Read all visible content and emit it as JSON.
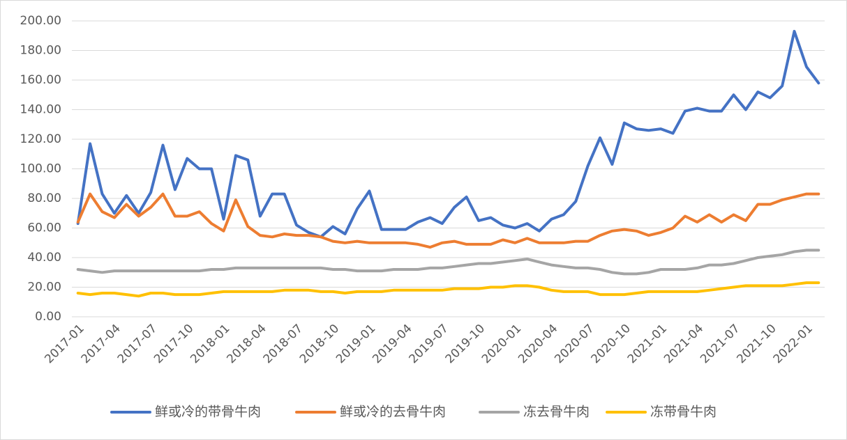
{
  "chart_data": {
    "type": "line",
    "categories": [
      "2017-01",
      null,
      null,
      "2017-04",
      null,
      null,
      "2017-07",
      null,
      null,
      "2017-10",
      null,
      null,
      "2018-01",
      null,
      null,
      "2018-04",
      null,
      null,
      "2018-07",
      null,
      null,
      "2018-10",
      null,
      null,
      "2019-01",
      null,
      null,
      "2019-04",
      null,
      null,
      "2019-07",
      null,
      null,
      "2019-10",
      null,
      null,
      "2020-01",
      null,
      null,
      "2020-04",
      null,
      null,
      "2020-07",
      null,
      null,
      "2020-10",
      null,
      null,
      "2021-01",
      null,
      null,
      "2021-04",
      null,
      null,
      "2021-07",
      null,
      null,
      "2021-10",
      null,
      null,
      "2022-01",
      null
    ],
    "series": [
      {
        "name": "鲜或冷的带骨牛肉",
        "color": "#4472c4",
        "values": [
          63,
          117,
          83,
          70,
          82,
          70,
          84,
          116,
          86,
          107,
          100,
          100,
          66,
          109,
          106,
          68,
          83,
          83,
          62,
          57,
          54,
          61,
          56,
          73,
          85,
          59,
          59,
          59,
          64,
          67,
          63,
          74,
          81,
          65,
          67,
          62,
          60,
          63,
          58,
          66,
          69,
          78,
          102,
          121,
          103,
          131,
          127,
          126,
          127,
          124,
          139,
          141,
          139,
          139,
          150,
          140,
          152,
          148,
          156,
          193,
          169,
          158
        ]
      },
      {
        "name": "鲜或冷的去骨牛肉",
        "color": "#ed7d31",
        "values": [
          64,
          83,
          71,
          67,
          76,
          68,
          74,
          83,
          68,
          68,
          71,
          63,
          58,
          79,
          61,
          55,
          54,
          56,
          55,
          55,
          54,
          51,
          50,
          51,
          50,
          50,
          50,
          50,
          49,
          47,
          50,
          51,
          49,
          49,
          49,
          52,
          50,
          53,
          50,
          50,
          50,
          51,
          51,
          55,
          58,
          59,
          58,
          55,
          57,
          60,
          68,
          64,
          69,
          64,
          69,
          65,
          76,
          76,
          79,
          81,
          83,
          83
        ]
      },
      {
        "name": "冻去骨牛肉",
        "color": "#a5a5a5",
        "values": [
          32,
          31,
          30,
          31,
          31,
          31,
          31,
          31,
          31,
          31,
          31,
          32,
          32,
          33,
          33,
          33,
          33,
          33,
          33,
          33,
          33,
          32,
          32,
          31,
          31,
          31,
          32,
          32,
          32,
          33,
          33,
          34,
          35,
          36,
          36,
          37,
          38,
          39,
          37,
          35,
          34,
          33,
          33,
          32,
          30,
          29,
          29,
          30,
          32,
          32,
          32,
          33,
          35,
          35,
          36,
          38,
          40,
          41,
          42,
          44,
          45,
          45
        ]
      },
      {
        "name": "冻带骨牛肉",
        "color": "#ffc000",
        "values": [
          16,
          15,
          16,
          16,
          15,
          14,
          16,
          16,
          15,
          15,
          15,
          16,
          17,
          17,
          17,
          17,
          17,
          18,
          18,
          18,
          17,
          17,
          16,
          17,
          17,
          17,
          18,
          18,
          18,
          18,
          18,
          19,
          19,
          19,
          20,
          20,
          21,
          21,
          20,
          18,
          17,
          17,
          17,
          15,
          15,
          15,
          16,
          17,
          17,
          17,
          17,
          17,
          18,
          19,
          20,
          21,
          21,
          21,
          21,
          22,
          23,
          23
        ]
      }
    ],
    "ylim": [
      0,
      200
    ],
    "yticks": [
      {
        "value": 0,
        "label": "0.00"
      },
      {
        "value": 20,
        "label": "20.00"
      },
      {
        "value": 40,
        "label": "40.00"
      },
      {
        "value": 60,
        "label": "60.00"
      },
      {
        "value": 80,
        "label": "80.00"
      },
      {
        "value": 100,
        "label": "100.00"
      },
      {
        "value": 120,
        "label": "120.00"
      },
      {
        "value": 140,
        "label": "140.00"
      },
      {
        "value": 160,
        "label": "160.00"
      },
      {
        "value": 180,
        "label": "180.00"
      },
      {
        "value": 200,
        "label": "200.00"
      }
    ],
    "grid": true,
    "legend": "bottom"
  }
}
